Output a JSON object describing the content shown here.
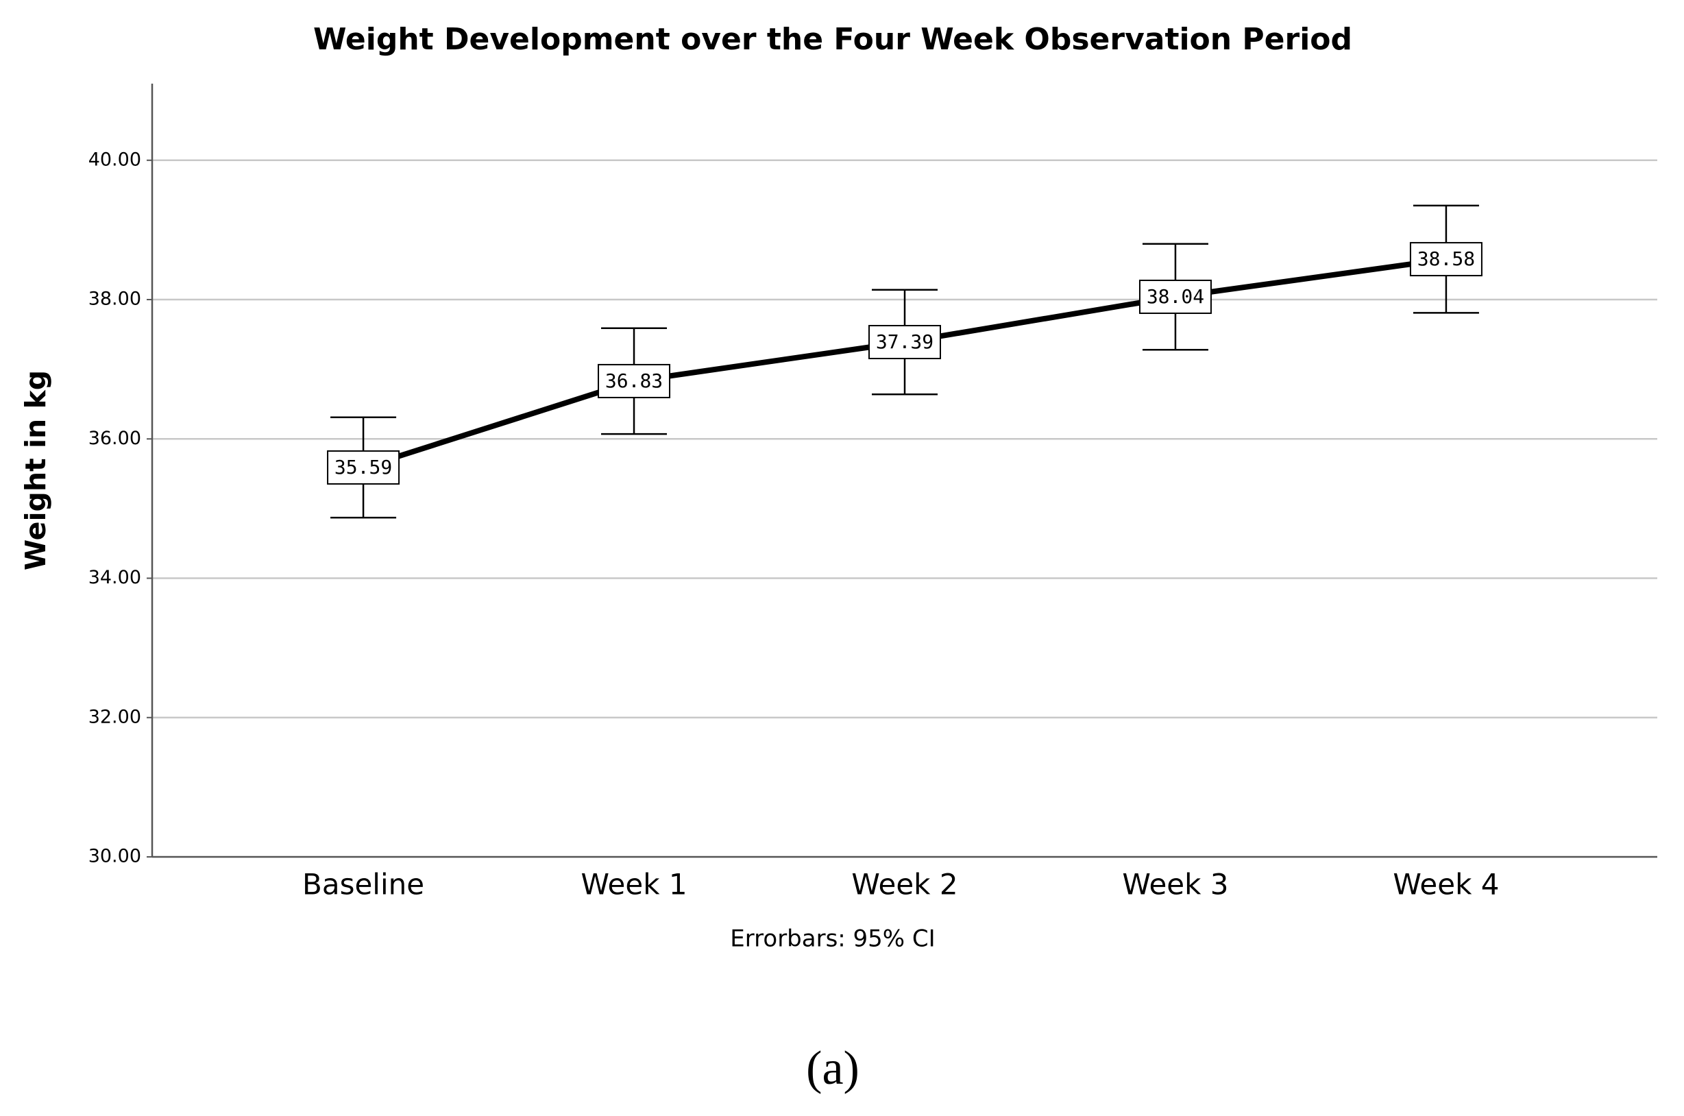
{
  "chart_data": {
    "type": "line",
    "title": "Weight Development over the Four Week Observation Period",
    "y_label": "Weight in kg",
    "note": "Errorbars: 95% CI",
    "caption": "(a)",
    "categories": [
      "Baseline",
      "Week 1",
      "Week 2",
      "Week 3",
      "Week 4"
    ],
    "values": [
      35.59,
      36.83,
      37.39,
      38.04,
      38.58
    ],
    "errors": [
      0.72,
      0.76,
      0.75,
      0.76,
      0.77
    ],
    "color": "#000000",
    "ylim": [
      30,
      41.1
    ],
    "yticks": [
      {
        "value": 30,
        "label": "30.00"
      },
      {
        "value": 32,
        "label": "32.00"
      },
      {
        "value": 34,
        "label": "34.00"
      },
      {
        "value": 36,
        "label": "36.00"
      },
      {
        "value": 38,
        "label": "38.00"
      },
      {
        "value": 40,
        "label": "40.00"
      }
    ],
    "grid": true
  }
}
